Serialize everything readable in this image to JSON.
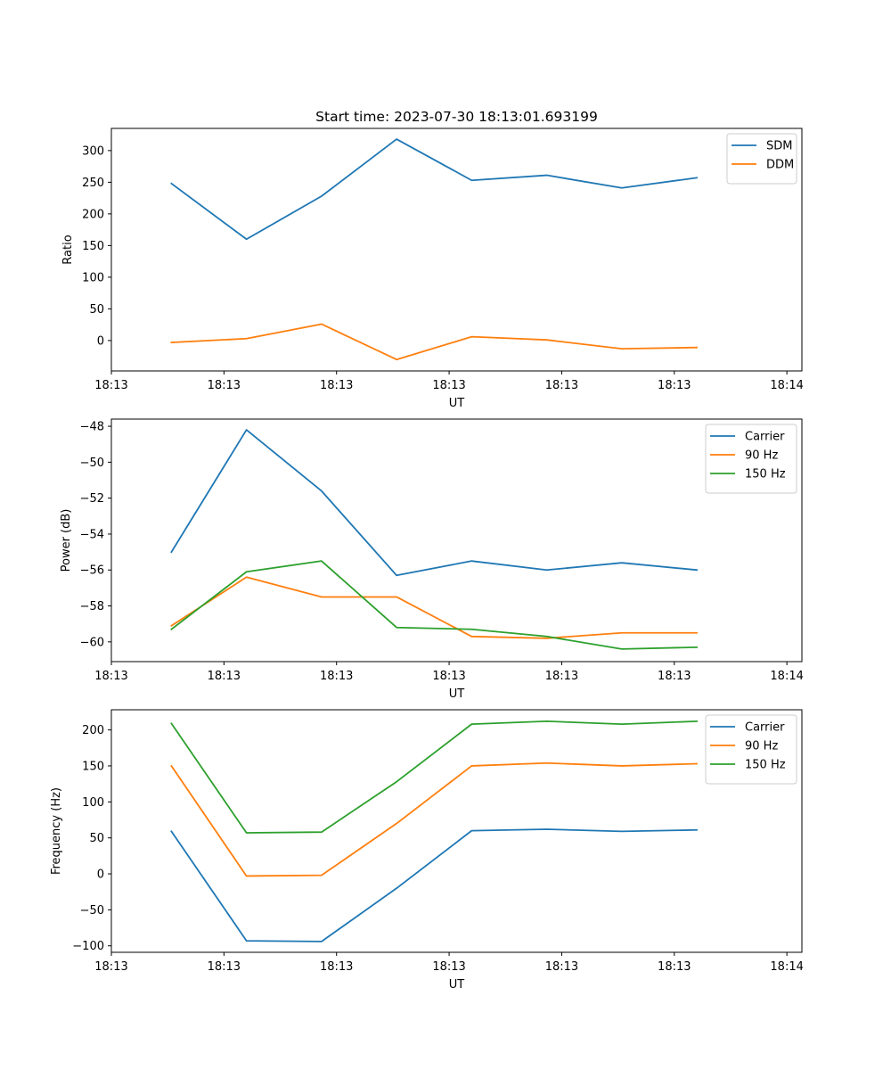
{
  "title": "Start time: 2023-07-30 18:13:01.693199",
  "colors": {
    "blue": "#1f77b4",
    "orange": "#ff7f0e",
    "green": "#2ca02c"
  },
  "chart_data": [
    {
      "type": "line",
      "title": "Start time: 2023-07-30 18:13:01.693199",
      "xlabel": "UT",
      "ylabel": "Ratio",
      "x": [
        1,
        2,
        3,
        4,
        5,
        6,
        7,
        8
      ],
      "xlim": [
        0.2,
        9.4
      ],
      "xticks": [
        0.2,
        1.7,
        3.2,
        4.7,
        6.2,
        7.7,
        9.2
      ],
      "xtick_labels": [
        "18:13",
        "18:13",
        "18:13",
        "18:13",
        "18:13",
        "18:13",
        "18:14"
      ],
      "ylim": [
        -48,
        335
      ],
      "yticks": [
        0,
        50,
        100,
        150,
        200,
        250,
        300
      ],
      "legend_position": "top-right",
      "series": [
        {
          "name": "SDM",
          "color": "#1f77b4",
          "values": [
            248,
            160,
            228,
            318,
            253,
            261,
            241,
            257
          ]
        },
        {
          "name": "DDM",
          "color": "#ff7f0e",
          "values": [
            -3,
            3,
            26,
            -30,
            6,
            1,
            -13,
            -11
          ]
        }
      ]
    },
    {
      "type": "line",
      "xlabel": "UT",
      "ylabel": "Power (dB)",
      "x": [
        1,
        2,
        3,
        4,
        5,
        6,
        7,
        8
      ],
      "xlim": [
        0.2,
        9.4
      ],
      "xticks": [
        0.2,
        1.7,
        3.2,
        4.7,
        6.2,
        7.7,
        9.2
      ],
      "xtick_labels": [
        "18:13",
        "18:13",
        "18:13",
        "18:13",
        "18:13",
        "18:13",
        "18:14"
      ],
      "ylim": [
        -61.1,
        -47.6
      ],
      "yticks": [
        -60,
        -58,
        -56,
        -54,
        -52,
        -50,
        -48
      ],
      "ytick_labels": [
        "−60",
        "−58",
        "−56",
        "−54",
        "−52",
        "−50",
        "−48"
      ],
      "legend_position": "top-right",
      "series": [
        {
          "name": "Carrier",
          "color": "#1f77b4",
          "values": [
            -55.0,
            -48.2,
            -51.6,
            -56.3,
            -55.5,
            -56.0,
            -55.6,
            -56.0
          ]
        },
        {
          "name": "90 Hz",
          "color": "#ff7f0e",
          "values": [
            -59.1,
            -56.4,
            -57.5,
            -57.5,
            -59.7,
            -59.8,
            -59.5,
            -59.5
          ]
        },
        {
          "name": "150 Hz",
          "color": "#2ca02c",
          "values": [
            -59.3,
            -56.1,
            -55.5,
            -59.2,
            -59.3,
            -59.7,
            -60.4,
            -60.3
          ]
        }
      ]
    },
    {
      "type": "line",
      "xlabel": "UT",
      "ylabel": "Frequency (Hz)",
      "x": [
        1,
        2,
        3,
        4,
        5,
        6,
        7,
        8
      ],
      "xlim": [
        0.2,
        9.4
      ],
      "xticks": [
        0.2,
        1.7,
        3.2,
        4.7,
        6.2,
        7.7,
        9.2
      ],
      "xtick_labels": [
        "18:13",
        "18:13",
        "18:13",
        "18:13",
        "18:13",
        "18:13",
        "18:14"
      ],
      "ylim": [
        -109,
        228
      ],
      "yticks": [
        -100,
        -50,
        0,
        50,
        100,
        150,
        200
      ],
      "ytick_labels": [
        "−100",
        "−50",
        "0",
        "50",
        "100",
        "150",
        "200"
      ],
      "legend_position": "top-right",
      "series": [
        {
          "name": "Carrier",
          "color": "#1f77b4",
          "values": [
            59,
            -93,
            -94,
            -20,
            60,
            62,
            59,
            61
          ]
        },
        {
          "name": "90 Hz",
          "color": "#ff7f0e",
          "values": [
            150,
            -3,
            -2,
            70,
            150,
            154,
            150,
            153
          ]
        },
        {
          "name": "150 Hz",
          "color": "#2ca02c",
          "values": [
            209,
            57,
            58,
            128,
            208,
            212,
            208,
            212
          ]
        }
      ]
    }
  ]
}
